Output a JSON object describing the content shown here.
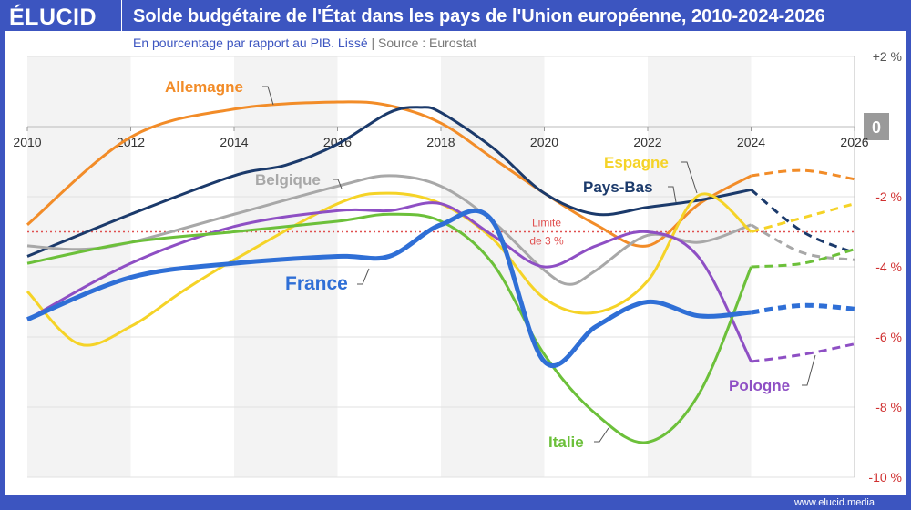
{
  "header": {
    "logo": "ÉLUCID",
    "title": "Solde budgétaire de l'État dans les pays de l'Union européenne, 2010-2024-2026",
    "subtitle": "En pourcentage par rapport au PIB. Lissé",
    "separator": "|",
    "source": "Source : Eurostat"
  },
  "footer": {
    "url": "www.elucid.media"
  },
  "chart_data": {
    "type": "line",
    "x_ticks": [
      2010,
      2012,
      2014,
      2016,
      2018,
      2020,
      2022,
      2024,
      2026
    ],
    "x_tick_labels": [
      "2010",
      "2012",
      "2014",
      "2016",
      "2018",
      "2020",
      "2022",
      "2024",
      "2026"
    ],
    "ylim": [
      -10,
      2
    ],
    "y_ticks": [
      2,
      0,
      -2,
      -4,
      -6,
      -8,
      -10
    ],
    "y_tick_labels": [
      "+2 %",
      "0",
      "-2 %",
      "-4 %",
      "-6 %",
      "-8 %",
      "-10 %"
    ],
    "threshold": {
      "value": -3,
      "label_line1": "Limite",
      "label_line2": "de 3 %",
      "color": "#e05050"
    },
    "projection_from": 2024,
    "series": [
      {
        "name": "Allemagne",
        "color": "#f28c28",
        "x": [
          2010,
          2012,
          2014,
          2016,
          2017,
          2018,
          2019,
          2020,
          2021,
          2022,
          2023,
          2024,
          2025,
          2026
        ],
        "values": [
          -2.8,
          -0.3,
          0.5,
          0.7,
          0.6,
          0.1,
          -0.9,
          -1.9,
          -2.8,
          -3.4,
          -2.2,
          -1.4,
          -1.25,
          -1.5
        ]
      },
      {
        "name": "Pays-Bas",
        "color": "#1b3a6b",
        "x": [
          2010,
          2012,
          2014,
          2015,
          2016,
          2017,
          2017.6,
          2018,
          2019,
          2020,
          2021,
          2022,
          2023,
          2024,
          2025,
          2026
        ],
        "values": [
          -3.7,
          -2.5,
          -1.4,
          -1.1,
          -0.5,
          0.4,
          0.55,
          0.4,
          -0.6,
          -1.9,
          -2.5,
          -2.3,
          -2.1,
          -1.8,
          -3.0,
          -3.6
        ]
      },
      {
        "name": "Belgique",
        "color": "#a8a8a8",
        "x": [
          2010,
          2011,
          2012,
          2014,
          2016,
          2017,
          2018,
          2019,
          2020,
          2020.5,
          2021,
          2022,
          2023,
          2024,
          2025,
          2026
        ],
        "values": [
          -3.4,
          -3.5,
          -3.3,
          -2.5,
          -1.7,
          -1.4,
          -1.7,
          -2.7,
          -4.1,
          -4.5,
          -4.1,
          -3.1,
          -3.3,
          -2.8,
          -3.6,
          -3.8
        ]
      },
      {
        "name": "Espagne",
        "color": "#f5d327",
        "x": [
          2010,
          2011,
          2012,
          2013,
          2014,
          2016,
          2017,
          2018,
          2019,
          2020,
          2021,
          2022,
          2023,
          2024,
          2025,
          2026
        ],
        "values": [
          -4.7,
          -6.2,
          -5.7,
          -4.7,
          -3.8,
          -2.2,
          -1.9,
          -2.2,
          -3.2,
          -4.9,
          -5.3,
          -4.4,
          -1.95,
          -3.0,
          -2.6,
          -2.2
        ]
      },
      {
        "name": "Pologne",
        "color": "#8e4fc4",
        "x": [
          2010,
          2012,
          2014,
          2016,
          2017,
          2018,
          2019,
          2020,
          2021,
          2022,
          2023,
          2024,
          2025,
          2026
        ],
        "values": [
          -5.5,
          -3.9,
          -2.85,
          -2.4,
          -2.4,
          -2.2,
          -3.1,
          -4.0,
          -3.4,
          -3.0,
          -3.75,
          -6.7,
          -6.5,
          -6.2
        ]
      },
      {
        "name": "Italie",
        "color": "#6cc03a",
        "x": [
          2010,
          2012,
          2014,
          2016,
          2017,
          2018,
          2019,
          2020,
          2021,
          2022,
          2023,
          2024,
          2025,
          2026
        ],
        "values": [
          -3.9,
          -3.3,
          -3.0,
          -2.7,
          -2.5,
          -2.7,
          -3.9,
          -6.5,
          -8.2,
          -9.0,
          -7.6,
          -4.0,
          -3.9,
          -3.5
        ]
      },
      {
        "name": "France",
        "color": "#2f6fd6",
        "x": [
          2010,
          2012,
          2014,
          2016,
          2017,
          2018,
          2019,
          2020,
          2021,
          2022,
          2023,
          2024,
          2025,
          2026
        ],
        "values": [
          -5.5,
          -4.3,
          -3.9,
          -3.7,
          -3.7,
          -2.8,
          -2.7,
          -6.7,
          -5.7,
          -5.0,
          -5.4,
          -5.3,
          -5.1,
          -5.2
        ]
      }
    ]
  }
}
